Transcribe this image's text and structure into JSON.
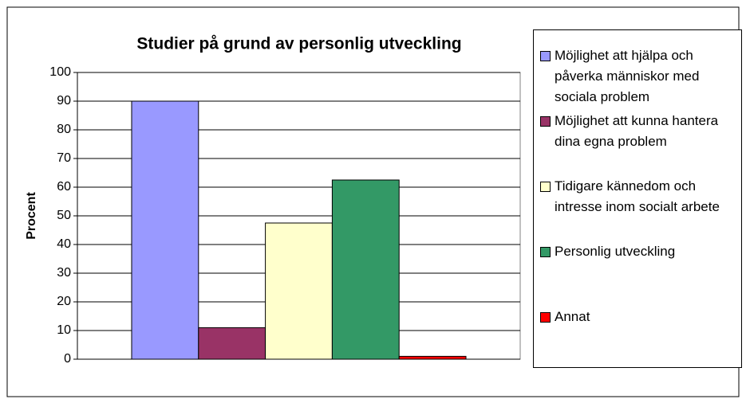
{
  "chart_data": {
    "type": "bar",
    "title": "Studier på grund av personlig utveckling",
    "y_label": "Procent",
    "categories": [
      null
    ],
    "series": [
      {
        "name": "Möjlighet att hjälpa och påverka människor med sociala problem",
        "color": "#9999ff",
        "values": [
          90
        ]
      },
      {
        "name": "Möjlighet att kunna hantera dina egna problem",
        "color": "#993366",
        "values": [
          11
        ]
      },
      {
        "name": "Tidigare kännedom och intresse inom socialt arbete",
        "color": "#ffffcc",
        "values": [
          47.5
        ]
      },
      {
        "name": "Personlig utveckling",
        "color": "#339966",
        "values": [
          62.5
        ]
      },
      {
        "name": "Annat",
        "color": "#ff0000",
        "values": [
          1
        ]
      }
    ],
    "ylim": [
      0,
      100
    ],
    "yticks": [
      0,
      10,
      20,
      30,
      40,
      50,
      60,
      70,
      80,
      90,
      100
    ],
    "grid": true,
    "legend": "right"
  }
}
